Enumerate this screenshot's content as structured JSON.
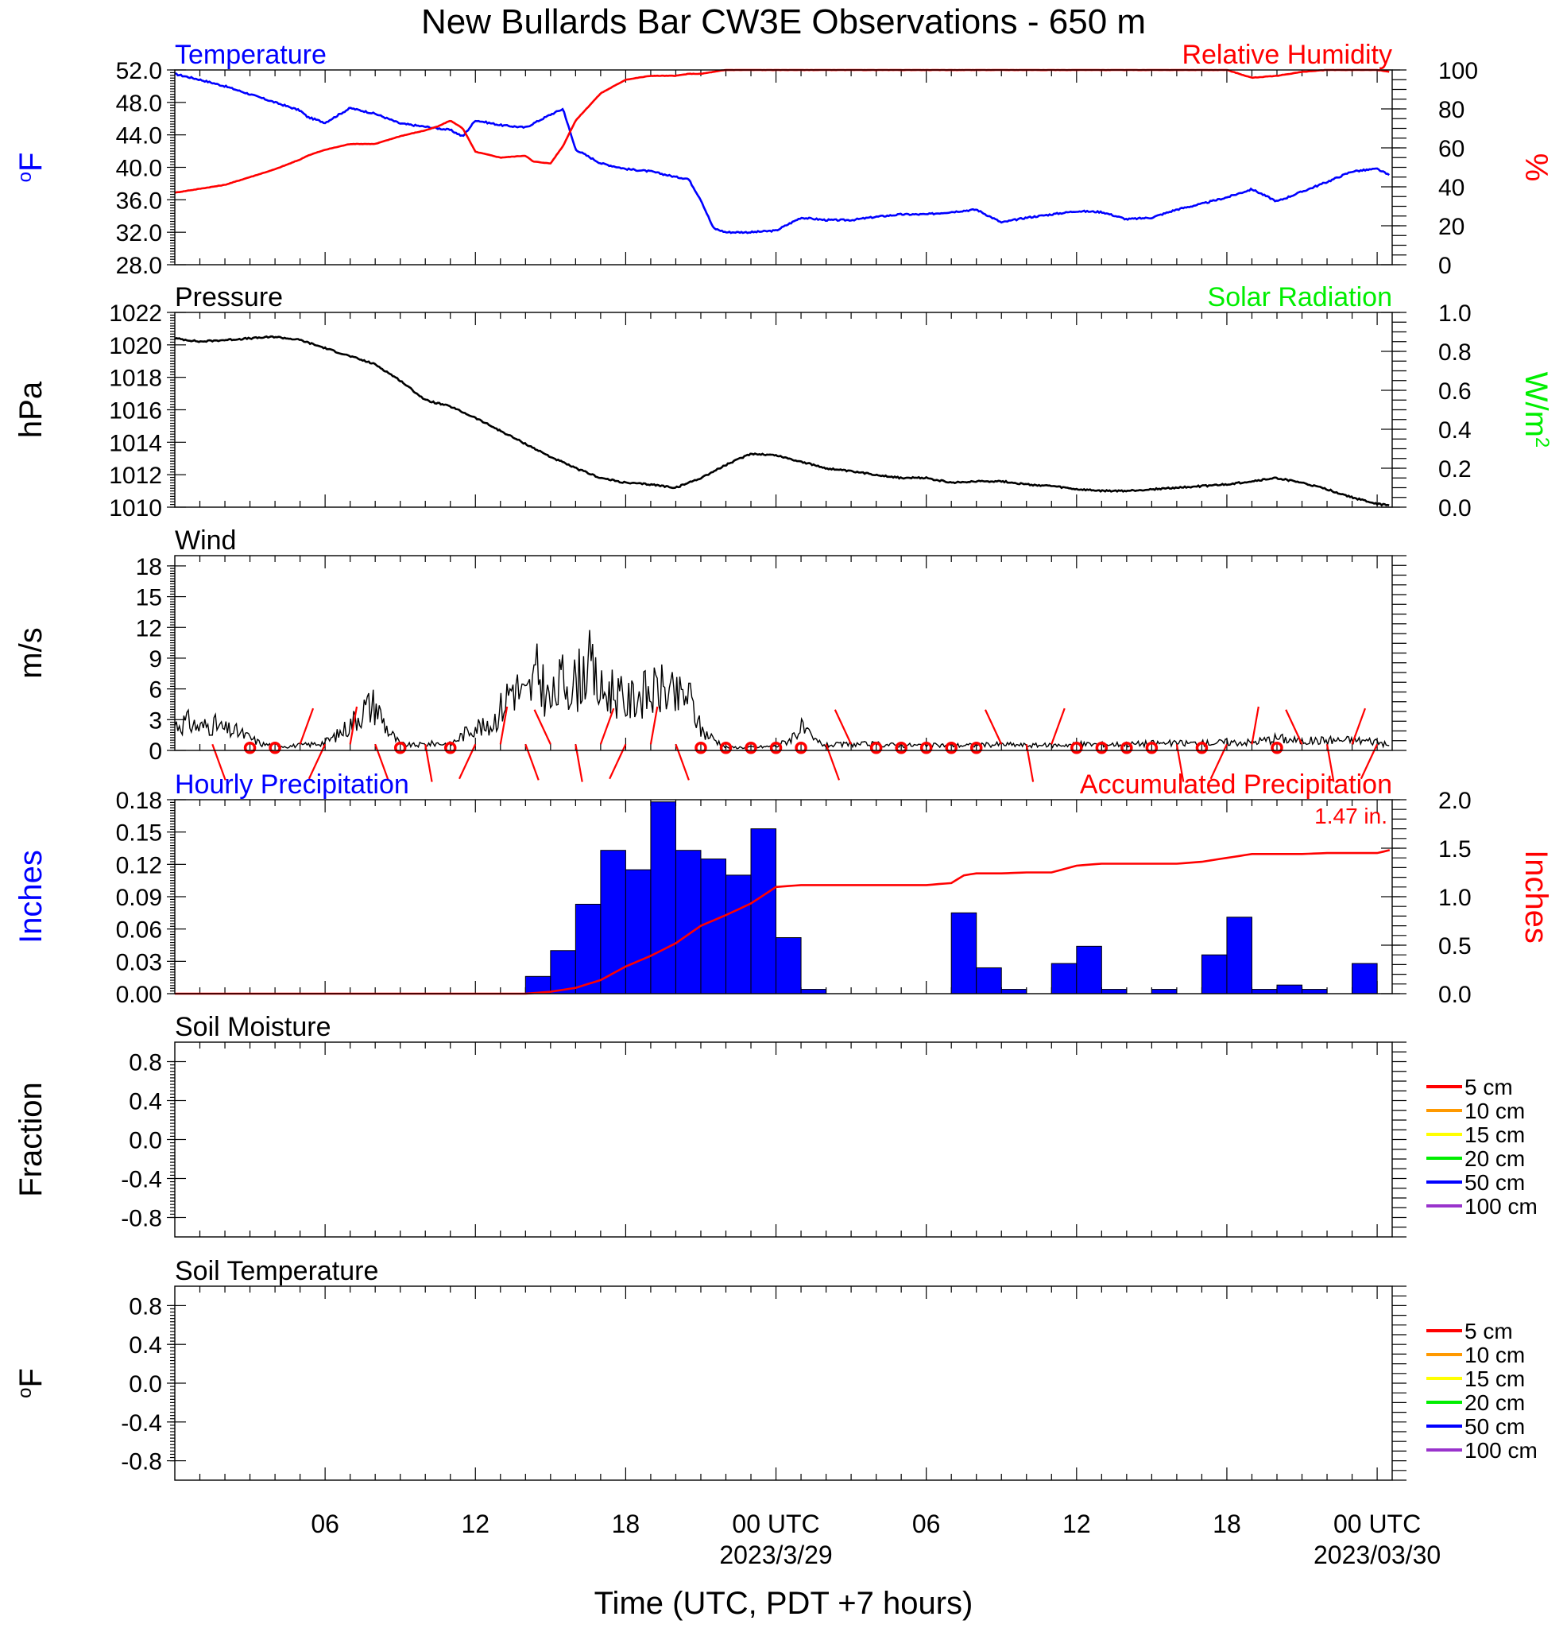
{
  "figure": {
    "title": "New Bullards Bar CW3E Observations - 650 m",
    "xlabel": "Time (UTC, PDT +7 hours)",
    "x_ticks": [
      {
        "hour": 6,
        "label": "06"
      },
      {
        "hour": 12,
        "label": "12"
      },
      {
        "hour": 18,
        "label": "18"
      },
      {
        "hour": 24,
        "label": "00 UTC",
        "sublabel": "2023/3/29"
      },
      {
        "hour": 30,
        "label": "06"
      },
      {
        "hour": 36,
        "label": "12"
      },
      {
        "hour": 42,
        "label": "18"
      },
      {
        "hour": 48,
        "label": "00 UTC",
        "sublabel": "2023/03/30"
      }
    ]
  },
  "chart_data": [
    {
      "type": "line",
      "title": "Temperature",
      "title_right": "Relative Humidity",
      "ylabel": "oF",
      "ylabel_right": "%",
      "ylim": [
        28,
        52
      ],
      "yticks": [
        "28.0",
        "32.0",
        "36.0",
        "40.0",
        "44.0",
        "48.0",
        "52.0"
      ],
      "ylim_right": [
        0,
        100
      ],
      "yticks_right": [
        "0",
        "20",
        "40",
        "60",
        "80",
        "100"
      ],
      "colors": {
        "left": "#0000ff",
        "right": "#ff0000"
      },
      "series": [
        {
          "axis": "left",
          "color": "#0000ff",
          "x": [
            0,
            1,
            2,
            3,
            4,
            5,
            5.3,
            6,
            7,
            8,
            9,
            10,
            11,
            11.5,
            12,
            13,
            14,
            15,
            15.5,
            16,
            17,
            18,
            19,
            20,
            20.5,
            21,
            21.5,
            22,
            23,
            24,
            25,
            26,
            27,
            28,
            29,
            30,
            31,
            32,
            33,
            34,
            35,
            36,
            37,
            38,
            39,
            40,
            41,
            42,
            43,
            44,
            45,
            46,
            47,
            48,
            48.5
          ],
          "y": [
            51.5,
            50.8,
            50,
            49,
            48,
            47,
            46.2,
            45.5,
            47.3,
            46.6,
            45.4,
            45,
            44.6,
            43.8,
            45.8,
            45.2,
            44.9,
            46.5,
            47.2,
            42.2,
            40.5,
            39.8,
            39.5,
            38.8,
            38.6,
            36,
            32.5,
            32,
            32,
            32.2,
            33.8,
            33.5,
            33.5,
            33.9,
            34.2,
            34.2,
            34.5,
            34.8,
            33.2,
            33.8,
            34.2,
            34.6,
            34.5,
            33.6,
            33.8,
            34.8,
            35.5,
            36.3,
            37.3,
            35.8,
            37,
            38.2,
            39.5,
            39.8,
            39
          ]
        },
        {
          "axis": "right",
          "color": "#ff0000",
          "x": [
            0,
            1,
            2,
            3,
            4,
            5,
            5.3,
            6,
            7,
            8,
            9,
            10,
            10.5,
            11,
            11.5,
            12,
            13,
            14,
            14.3,
            15,
            15.5,
            16,
            17,
            18,
            19,
            20,
            20.5,
            21,
            21.5,
            22,
            23,
            24,
            25,
            26,
            27,
            28,
            29,
            30,
            31,
            32,
            33,
            34,
            35,
            36,
            37,
            38,
            38.5,
            39,
            40,
            41,
            42,
            43,
            44,
            45,
            46,
            47,
            48,
            48.5
          ],
          "y": [
            37,
            39,
            41,
            45,
            49,
            54,
            56,
            59,
            62,
            62,
            66,
            69,
            71,
            74,
            70,
            58,
            55,
            56,
            53,
            52,
            61,
            74,
            88,
            95,
            97,
            97,
            98,
            98,
            99,
            100,
            100,
            100,
            100,
            100,
            100,
            100,
            100,
            100,
            100,
            100,
            100,
            100,
            100,
            100,
            100,
            100,
            100,
            100,
            100,
            100,
            100,
            96,
            97,
            99,
            100,
            100,
            100,
            99
          ]
        }
      ]
    },
    {
      "type": "line",
      "title": "Pressure",
      "title_right": "Solar Radiation",
      "ylabel": "hPa",
      "ylabel_right": "W/m2",
      "ylim": [
        1010,
        1022
      ],
      "yticks": [
        "1010",
        "1012",
        "1014",
        "1016",
        "1018",
        "1020",
        "1022"
      ],
      "ylim_right": [
        0,
        1
      ],
      "yticks_right": [
        "0.0",
        "0.2",
        "0.4",
        "0.6",
        "0.8",
        "1.0"
      ],
      "colors": {
        "left": "#000000",
        "right": "#00ee00"
      },
      "series": [
        {
          "axis": "left",
          "color": "#000000",
          "x": [
            0,
            1,
            2,
            3,
            4,
            5,
            6,
            7,
            8,
            9,
            10,
            11,
            12,
            13,
            14,
            15,
            16,
            17,
            18,
            19,
            20,
            21,
            22,
            23,
            24,
            25,
            26,
            27,
            28,
            29,
            30,
            31,
            32,
            33,
            34,
            35,
            36,
            37,
            38,
            39,
            40,
            41,
            42,
            43,
            44,
            45,
            46,
            47,
            48,
            48.5
          ],
          "y": [
            1020.4,
            1020.2,
            1020.3,
            1020.4,
            1020.5,
            1020.3,
            1019.8,
            1019.3,
            1018.8,
            1017.8,
            1016.6,
            1016.2,
            1015.5,
            1014.7,
            1013.9,
            1013.1,
            1012.4,
            1011.8,
            1011.5,
            1011.4,
            1011.2,
            1011.8,
            1012.6,
            1013.3,
            1013.2,
            1012.8,
            1012.4,
            1012.2,
            1012,
            1011.8,
            1011.8,
            1011.5,
            1011.6,
            1011.6,
            1011.4,
            1011.3,
            1011.1,
            1011,
            1011,
            1011.1,
            1011.2,
            1011.3,
            1011.4,
            1011.6,
            1011.8,
            1011.5,
            1011.1,
            1010.6,
            1010.2,
            1010.1
          ]
        }
      ]
    },
    {
      "type": "line",
      "title": "Wind",
      "ylabel": "m/s",
      "ylim": [
        0,
        19
      ],
      "yticks": [
        "0",
        "3",
        "6",
        "9",
        "12",
        "15",
        "18"
      ],
      "colors": {
        "speed": "#000000",
        "barbs": "#ff0000"
      },
      "series": [
        {
          "axis": "left",
          "color": "#000000",
          "x": [
            0,
            0.5,
            1,
            1.5,
            2,
            2.5,
            3,
            3.5,
            4,
            4.5,
            5,
            5.5,
            6,
            6.5,
            7,
            7.5,
            8,
            8.5,
            9,
            9.5,
            10,
            10.5,
            11,
            11.5,
            12,
            12.5,
            13,
            13.5,
            14,
            14.5,
            15,
            15.5,
            16,
            16.5,
            17,
            17.5,
            18,
            18.5,
            19,
            19.5,
            20,
            20.5,
            21,
            22,
            23,
            24,
            24.5,
            25,
            25.5,
            26,
            27,
            28,
            29,
            30,
            31,
            32,
            33,
            34,
            35,
            36,
            37,
            38,
            39,
            40,
            41,
            42,
            43,
            44,
            45,
            46,
            47,
            48,
            48.5
          ],
          "y": [
            2.5,
            2.8,
            2.2,
            2.6,
            2,
            1.8,
            1.2,
            0.6,
            0.5,
            0.4,
            0.5,
            0.6,
            0.8,
            1.5,
            2.5,
            4,
            4.5,
            2,
            0.6,
            0.5,
            0.6,
            0.7,
            0.6,
            1.5,
            2.5,
            2,
            4,
            6.5,
            5,
            7.5,
            4.5,
            7,
            6.5,
            8.5,
            5.5,
            6,
            4.5,
            5.5,
            5.5,
            6,
            5,
            5.5,
            2,
            0.3,
            0.3,
            0.4,
            1,
            2.2,
            1,
            0.5,
            0.6,
            0.6,
            0.5,
            0.5,
            0.5,
            0.5,
            0.6,
            0.5,
            0.5,
            0.6,
            0.6,
            0.6,
            0.7,
            0.7,
            0.7,
            0.8,
            0.8,
            1.2,
            0.9,
            1,
            1,
            0.9,
            0.4
          ]
        }
      ],
      "barb_hours": [
        1.5,
        3,
        4,
        5,
        6,
        7,
        8,
        9,
        10,
        11,
        12,
        13,
        14,
        15,
        16,
        17,
        18,
        19,
        20,
        21,
        22,
        23,
        24,
        25,
        26,
        27,
        28,
        29,
        30,
        31,
        32,
        33,
        34,
        35,
        36,
        37,
        38,
        39,
        40,
        41,
        42,
        43,
        44,
        45,
        46,
        47,
        48
      ],
      "calm_hours": [
        3,
        4,
        9,
        11,
        21,
        22,
        23,
        24,
        25,
        28,
        29,
        30,
        31,
        32,
        36,
        37,
        38,
        39,
        41,
        44
      ]
    },
    {
      "type": "bar",
      "title": "Hourly Precipitation",
      "title_right": "Accumulated Precipitation",
      "annotation": "1.47 in.",
      "ylabel": "Inches",
      "ylabel_right": "Inches",
      "ylim": [
        0,
        0.18
      ],
      "yticks": [
        "0.00",
        "0.03",
        "0.06",
        "0.09",
        "0.12",
        "0.15",
        "0.18"
      ],
      "ylim_right": [
        0,
        2
      ],
      "yticks_right": [
        "0.0",
        "0.5",
        "1.0",
        "1.5",
        "2.0"
      ],
      "colors": {
        "bars": "#0000ff",
        "line": "#ff0000"
      },
      "bars": {
        "start_hour": [
          14,
          15,
          16,
          17,
          18,
          19,
          20,
          21,
          22,
          23,
          24,
          25,
          26,
          31,
          32,
          33,
          35,
          36,
          37,
          39,
          41,
          42,
          43,
          44,
          45,
          47
        ],
        "values": [
          0.016,
          0.04,
          0.083,
          0.133,
          0.115,
          0.178,
          0.133,
          0.125,
          0.11,
          0.153,
          0.052,
          0.004,
          0,
          0.075,
          0.024,
          0.004,
          0.028,
          0.044,
          0.004,
          0.004,
          0.036,
          0.071,
          0.004,
          0.008,
          0.004,
          0.028
        ]
      },
      "series": [
        {
          "axis": "right",
          "color": "#ff0000",
          "x": [
            0,
            14,
            15,
            16,
            17,
            18,
            19,
            20,
            21,
            22,
            23,
            24,
            25,
            26,
            27,
            28,
            29,
            30,
            31,
            31.5,
            32,
            33,
            34,
            35,
            36,
            37,
            38,
            39,
            40,
            41,
            42,
            43,
            44,
            45,
            46,
            47,
            48,
            48.5
          ],
          "y": [
            0,
            0,
            0.02,
            0.06,
            0.14,
            0.28,
            0.39,
            0.52,
            0.7,
            0.81,
            0.93,
            1.1,
            1.12,
            1.12,
            1.12,
            1.12,
            1.12,
            1.12,
            1.14,
            1.22,
            1.24,
            1.24,
            1.25,
            1.25,
            1.32,
            1.34,
            1.34,
            1.34,
            1.34,
            1.36,
            1.4,
            1.44,
            1.44,
            1.44,
            1.45,
            1.45,
            1.45,
            1.48
          ]
        }
      ]
    },
    {
      "type": "line",
      "title": "Soil Moisture",
      "ylabel": "Fraction",
      "ylim": [
        -1,
        1
      ],
      "yticks": [
        "-0.8",
        "-0.4",
        "0.0",
        "0.4",
        "0.8"
      ],
      "legend": [
        {
          "label": "5 cm",
          "color": "#ff0000"
        },
        {
          "label": "10 cm",
          "color": "#ff9900"
        },
        {
          "label": "15 cm",
          "color": "#ffff00"
        },
        {
          "label": "20 cm",
          "color": "#00ee00"
        },
        {
          "label": "50 cm",
          "color": "#0000ff"
        },
        {
          "label": "100 cm",
          "color": "#9933cc"
        }
      ],
      "series": []
    },
    {
      "type": "line",
      "title": "Soil Temperature",
      "ylabel": "oF",
      "ylim": [
        -1,
        1
      ],
      "yticks": [
        "-0.8",
        "-0.4",
        "0.0",
        "0.4",
        "0.8"
      ],
      "legend": [
        {
          "label": "5 cm",
          "color": "#ff0000"
        },
        {
          "label": "10 cm",
          "color": "#ff9900"
        },
        {
          "label": "15 cm",
          "color": "#ffff00"
        },
        {
          "label": "20 cm",
          "color": "#00ee00"
        },
        {
          "label": "50 cm",
          "color": "#0000ff"
        },
        {
          "label": "100 cm",
          "color": "#9933cc"
        }
      ],
      "series": []
    }
  ]
}
